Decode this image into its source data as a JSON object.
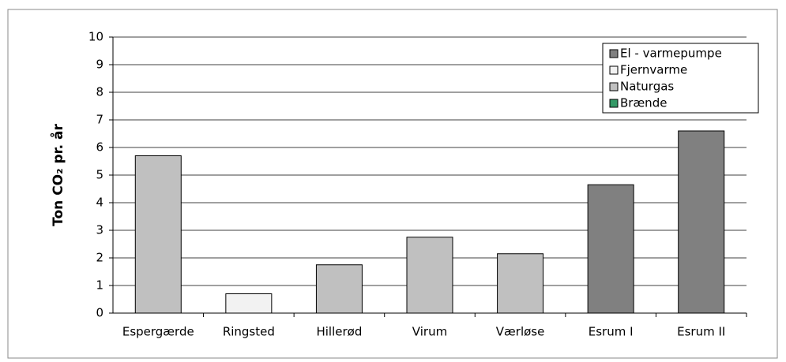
{
  "chart_data": {
    "type": "bar",
    "ylabel": "Ton CO₂ pr. år",
    "categories": [
      "Espergærde",
      "Ringsted",
      "Hillerød",
      "Virum",
      "Værløse",
      "Esrum I",
      "Esrum II"
    ],
    "series": [
      {
        "name": "El - varmepumpe",
        "color": "#808080",
        "values": [
          null,
          null,
          null,
          null,
          null,
          4.65,
          6.6
        ]
      },
      {
        "name": "Fjernvarme",
        "color": "#f2f2f2",
        "values": [
          null,
          0.7,
          null,
          null,
          null,
          null,
          null
        ]
      },
      {
        "name": "Naturgas",
        "color": "#c0c0c0",
        "values": [
          5.7,
          null,
          1.75,
          2.75,
          2.15,
          null,
          null
        ]
      },
      {
        "name": "Brænde",
        "color": "#339966",
        "values": [
          null,
          null,
          null,
          null,
          null,
          null,
          null
        ]
      }
    ],
    "ylim": [
      0,
      10
    ],
    "yticks": [
      0,
      1,
      2,
      3,
      4,
      5,
      6,
      7,
      8,
      9,
      10
    ],
    "grid": true,
    "legend": "upper right"
  }
}
